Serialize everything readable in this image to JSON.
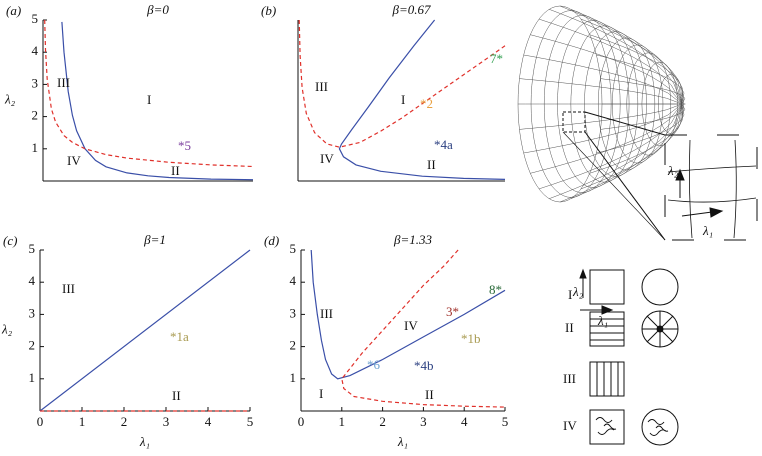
{
  "chart_data": [
    {
      "type": "line",
      "panel": "(a)",
      "title": "β=0",
      "ylabel": "λ₂",
      "xlim": [
        0,
        5
      ],
      "ylim": [
        0,
        5
      ],
      "yticks": [
        1,
        2,
        3,
        4,
        5
      ],
      "series": [
        {
          "color": "#3a4fa8",
          "dash": false,
          "x": [
            0.45,
            0.5,
            0.6,
            0.7,
            0.8,
            1,
            1.25,
            1.5,
            2,
            2.5,
            3,
            4,
            5
          ],
          "values": [
            4.94,
            4,
            2.78,
            2.04,
            1.56,
            1,
            0.64,
            0.44,
            0.25,
            0.16,
            0.11,
            0.06,
            0.04
          ]
        },
        {
          "color": "#e0302a",
          "dash": true,
          "x": [
            0.04,
            0.06,
            0.1,
            0.2,
            0.3,
            0.5,
            0.7,
            1,
            1.5,
            2,
            3,
            4,
            5
          ],
          "values": [
            5,
            4.08,
            3.16,
            2.24,
            1.83,
            1.41,
            1.2,
            1,
            0.82,
            0.71,
            0.58,
            0.5,
            0.45
          ]
        }
      ],
      "annotations": [
        {
          "text": "III",
          "color": "#111"
        },
        {
          "text": "I",
          "color": "#111"
        },
        {
          "text": "*5",
          "color": "#7b3f9e"
        },
        {
          "text": "IV",
          "color": "#111"
        },
        {
          "text": "II",
          "color": "#111"
        }
      ]
    },
    {
      "type": "line",
      "panel": "(b)",
      "title": "β=0.67",
      "xlim": [
        0,
        5
      ],
      "ylim": [
        0,
        5
      ],
      "series": [
        {
          "color": "#3a4fa8",
          "dash": false,
          "x": [
            3.3,
            2.8,
            2.2,
            1.7,
            1.3,
            1.05,
            1,
            1.1,
            1.4,
            2,
            3,
            4,
            5
          ],
          "values": [
            5,
            4.2,
            3.2,
            2.3,
            1.6,
            1.15,
            1,
            0.75,
            0.5,
            0.3,
            0.15,
            0.08,
            0.05
          ]
        },
        {
          "color": "#e0302a",
          "dash": true,
          "x": [
            0.03,
            0.05,
            0.1,
            0.2,
            0.4,
            0.7,
            1,
            1.5,
            2,
            2.5,
            3,
            3.5,
            4,
            4.5,
            5
          ],
          "values": [
            5,
            3.9,
            2.9,
            2.1,
            1.5,
            1.15,
            1.05,
            1.2,
            1.55,
            1.95,
            2.4,
            2.85,
            3.3,
            3.75,
            4.2
          ]
        }
      ],
      "annotations": [
        {
          "text": "III",
          "color": "#111"
        },
        {
          "text": "I",
          "color": "#111"
        },
        {
          "text": "*2",
          "color": "#e8a040"
        },
        {
          "text": "7*",
          "color": "#2e9e4e"
        },
        {
          "text": "*4a",
          "color": "#2b3f80"
        },
        {
          "text": "IV",
          "color": "#111"
        },
        {
          "text": "II",
          "color": "#111"
        }
      ]
    },
    {
      "type": "line",
      "panel": "(c)",
      "title": "β=1",
      "ylabel": "λ₂",
      "xlabel": "λ₁",
      "xlim": [
        0,
        5
      ],
      "ylim": [
        0,
        5
      ],
      "xticks": [
        0,
        1,
        2,
        3,
        4,
        5
      ],
      "yticks": [
        1,
        2,
        3,
        4,
        5
      ],
      "series": [
        {
          "color": "#3a4fa8",
          "dash": false,
          "x": [
            0,
            5
          ],
          "values": [
            0,
            5
          ]
        },
        {
          "color": "#e0302a",
          "dash": true,
          "x": [
            0,
            5
          ],
          "values": [
            0,
            0
          ]
        }
      ],
      "annotations": [
        {
          "text": "III",
          "color": "#111"
        },
        {
          "text": "*1a",
          "color": "#a89a50"
        },
        {
          "text": "II",
          "color": "#111"
        }
      ]
    },
    {
      "type": "line",
      "panel": "(d)",
      "title": "β=1.33",
      "xlabel": "λ₁",
      "xlim": [
        0,
        5
      ],
      "ylim": [
        0,
        5
      ],
      "xticks": [
        0,
        1,
        2,
        3,
        4,
        5
      ],
      "yticks": [
        1,
        2,
        3,
        4,
        5
      ],
      "series": [
        {
          "color": "#3a4fa8",
          "dash": false,
          "x": [
            0.25,
            0.3,
            0.4,
            0.5,
            0.6,
            0.75,
            0.9,
            1.2,
            2,
            3,
            4,
            5
          ],
          "values": [
            5,
            4,
            3,
            2.2,
            1.6,
            1.15,
            1,
            1.1,
            1.6,
            2.3,
            3,
            3.75
          ]
        },
        {
          "color": "#e0302a",
          "dash": true,
          "x": [
            3.85,
            3.5,
            3,
            2.5,
            2,
            1.5,
            1,
            1.05,
            1.3,
            2,
            3,
            4,
            5
          ],
          "values": [
            5,
            4.5,
            3.9,
            3.2,
            2.5,
            1.8,
            1,
            0.7,
            0.45,
            0.3,
            0.2,
            0.15,
            0.12
          ]
        }
      ],
      "annotations": [
        {
          "text": "III",
          "color": "#111"
        },
        {
          "text": "IV",
          "color": "#111"
        },
        {
          "text": "3*",
          "color": "#a0302a"
        },
        {
          "text": "8*",
          "color": "#2a6a3a"
        },
        {
          "text": "*1b",
          "color": "#a89a50"
        },
        {
          "text": "*6",
          "color": "#6aa0d0"
        },
        {
          "text": "*4b",
          "color": "#2b3f80"
        },
        {
          "text": "I",
          "color": "#111"
        },
        {
          "text": "II",
          "color": "#111"
        }
      ]
    }
  ],
  "schematic": {
    "inset_y": "λ₂",
    "inset_x": "λ₁",
    "icon_y": "λ₂",
    "icon_x": "λ₁",
    "rows": [
      "I",
      "II",
      "III",
      "IV"
    ]
  }
}
